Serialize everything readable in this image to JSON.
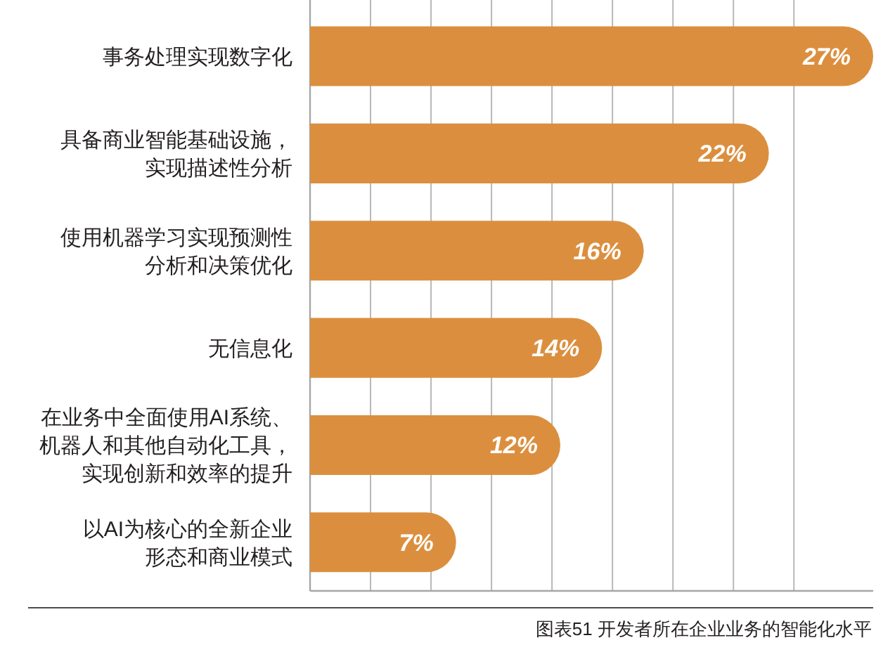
{
  "chart_data": {
    "type": "bar",
    "orientation": "horizontal",
    "categories": [
      "事务处理实现数字化",
      "具备商业智能基础设施，实现描述性分析",
      "使用机器学习实现预测性分析和决策优化",
      "无信息化",
      "在业务中全面使用AI系统、机器人和其他自动化工具，实现创新和效率的提升",
      "以AI为核心的全新企业形态和商业模式"
    ],
    "values": [
      27,
      22,
      16,
      14,
      12,
      7
    ],
    "value_labels": [
      "27%",
      "22%",
      "16%",
      "14%",
      "12%",
      "7%"
    ],
    "color": "#db8f3e",
    "xlim": [
      0,
      27
    ],
    "xticks": [
      {
        "value": 2.9,
        "label": null
      },
      {
        "value": 5.8,
        "label": null
      },
      {
        "value": 8.7,
        "label": null
      },
      {
        "value": 11.6,
        "label": null
      },
      {
        "value": 14.5,
        "label": null
      },
      {
        "value": 17.4,
        "label": null
      },
      {
        "value": 20.3,
        "label": null
      },
      {
        "value": 23.2,
        "label": null
      }
    ],
    "grid": "x",
    "tick_labels": "y",
    "annotations": [
      "图表51 开发者所在企业业务的智能化水平"
    ]
  }
}
